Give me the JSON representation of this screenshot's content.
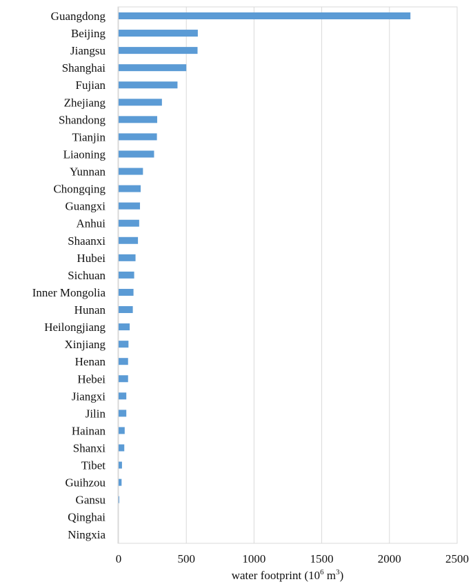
{
  "chart_data": {
    "type": "bar",
    "orientation": "horizontal",
    "categories": [
      "Guangdong",
      "Beijing",
      "Jiangsu",
      "Shanghai",
      "Fujian",
      "Zhejiang",
      "Shandong",
      "Tianjin",
      "Liaoning",
      "Yunnan",
      "Chongqing",
      "Guangxi",
      "Anhui",
      "Shaanxi",
      "Hubei",
      "Sichuan",
      "Inner Mongolia",
      "Hunan",
      "Heilongjiang",
      "Xinjiang",
      "Henan",
      "Hebei",
      "Jiangxi",
      "Jilin",
      "Hainan",
      "Shanxi",
      "Tibet",
      "Guihzou",
      "Gansu",
      "Qinghai",
      "Ningxia"
    ],
    "values": [
      2155,
      585,
      583,
      500,
      435,
      320,
      285,
      283,
      262,
      180,
      163,
      158,
      152,
      143,
      125,
      115,
      110,
      105,
      82,
      73,
      70,
      70,
      57,
      57,
      45,
      42,
      25,
      22,
      5,
      0,
      0
    ],
    "xlim": [
      0,
      2500
    ],
    "xticks": [
      0,
      500,
      1000,
      1500,
      2000,
      2500
    ],
    "tick_labels": [
      "0",
      "500",
      "1000",
      "1500",
      "2000",
      "2500"
    ],
    "xlabel_prefix": "water footprint (10",
    "xlabel_sup1": "6",
    "xlabel_mid": " m",
    "xlabel_sup2": "3",
    "xlabel_suffix": ")",
    "grid": "vertical",
    "bar_color": "#5b9bd5",
    "grid_color": "#d9d9d9"
  }
}
